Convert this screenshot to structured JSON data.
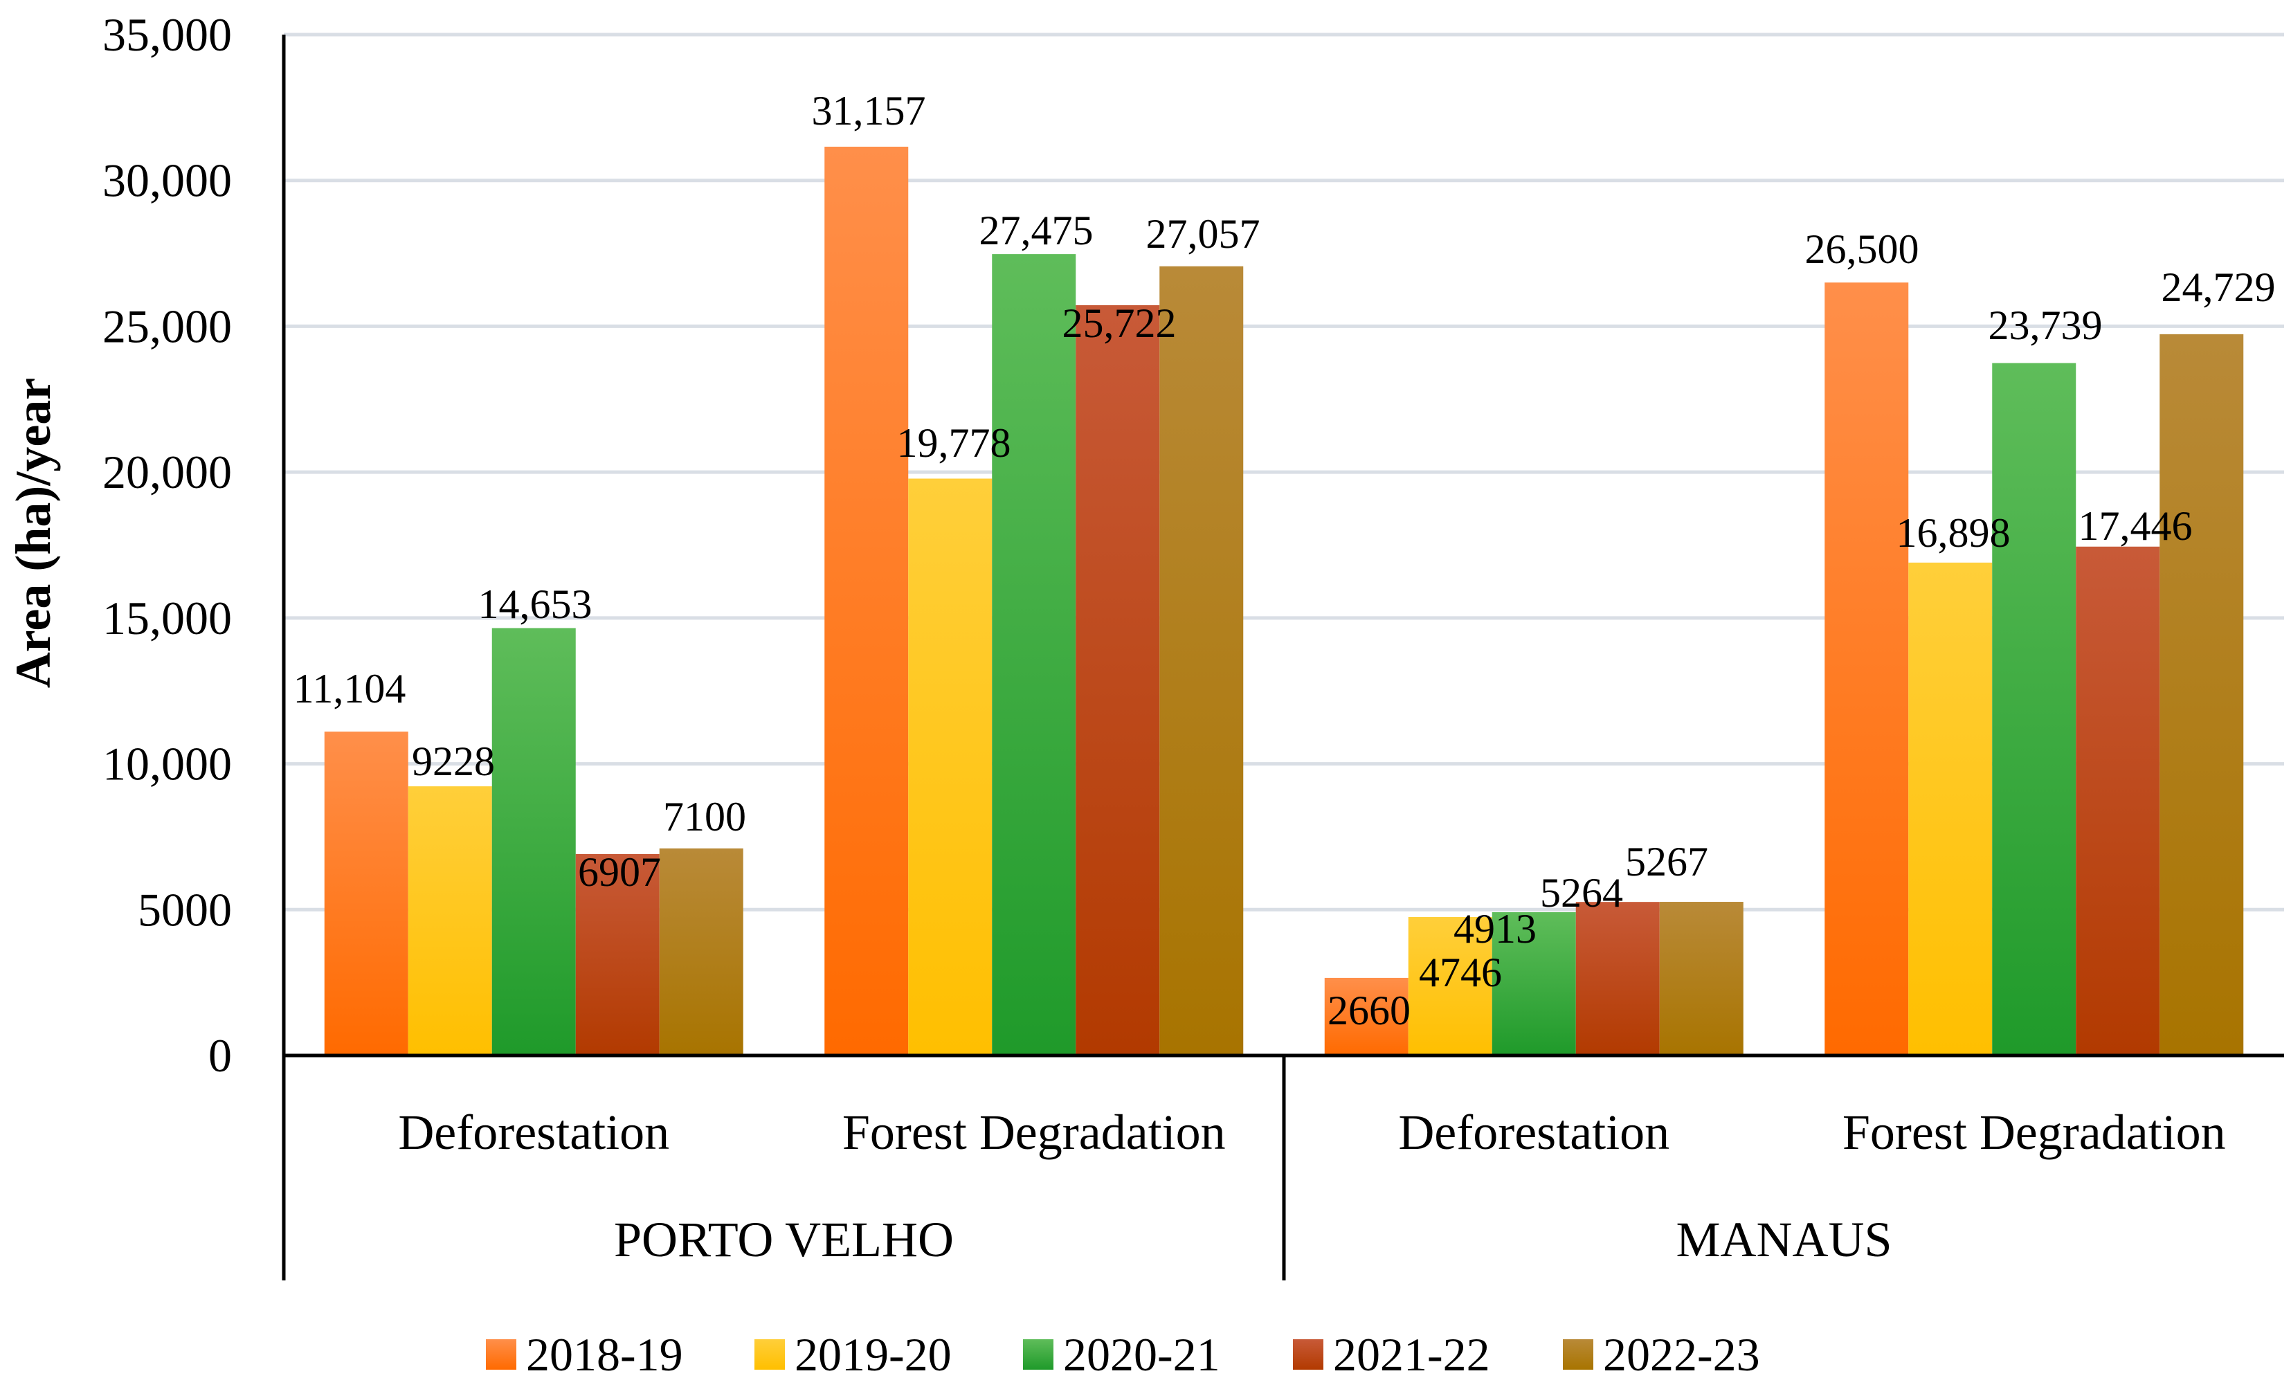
{
  "chart_data": {
    "type": "bar",
    "title": "",
    "xlabel": "",
    "ylabel": "Area (ha)/year",
    "ylim": [
      0,
      35000
    ],
    "yticks": [
      0,
      5000,
      10000,
      15000,
      20000,
      25000,
      30000,
      35000
    ],
    "ytick_labels": [
      "0",
      "5000",
      "10,000",
      "15,000",
      "20,000",
      "25,000",
      "30,000",
      "35,000"
    ],
    "grid": true,
    "legend_position": "bottom",
    "groups": [
      {
        "name": "PORTO VELHO",
        "categories": [
          "Deforestation",
          "Forest Degradation"
        ]
      },
      {
        "name": "MANAUS",
        "categories": [
          "Deforestation",
          "Forest Degradation"
        ]
      }
    ],
    "series": [
      {
        "name": "2018-19",
        "color": "#ff7a1f",
        "values": [
          11104,
          31157,
          2660,
          26500
        ],
        "labels": [
          "11,104",
          "31,157",
          "2660",
          "26,500"
        ]
      },
      {
        "name": "2019-20",
        "color": "#ffc20e",
        "values": [
          9228,
          19778,
          4746,
          16898
        ],
        "labels": [
          "9228",
          "19,778",
          "4746",
          "16,898"
        ]
      },
      {
        "name": "2020-21",
        "color": "#3fae3f",
        "values": [
          14653,
          27475,
          4913,
          23739
        ],
        "labels": [
          "14,653",
          "27,475",
          "4913",
          "23,739"
        ]
      },
      {
        "name": "2021-22",
        "color": "#c2461c",
        "values": [
          6907,
          25722,
          5264,
          17446
        ],
        "labels": [
          "6907",
          "25,722",
          "5264",
          "17,446"
        ]
      },
      {
        "name": "2022-23",
        "color": "#b0821e",
        "values": [
          7100,
          27057,
          5267,
          24729
        ],
        "labels": [
          "7100",
          "27,057",
          "5267",
          "24,729"
        ]
      }
    ]
  }
}
